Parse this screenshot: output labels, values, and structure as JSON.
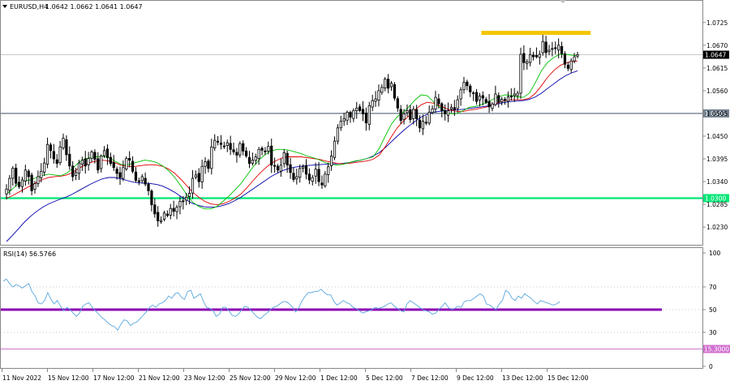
{
  "header": {
    "symbol": "EURUSD,H4",
    "ohlc": "1.0642 1.0662 1.0641 1.0647",
    "menu_icon": "triangle-down-icon"
  },
  "rsi_header": {
    "label": "RSI(14) 56.5766"
  },
  "colors": {
    "bull_candle_border": "#000000",
    "bull_candle_fill": "#ffffff",
    "bear_candle_fill": "#000000",
    "ma_fast": "#00c000",
    "ma_mid": "#e00000",
    "ma_slow": "#0000aa",
    "support_line": "#00e676",
    "resistance_line": "#708090",
    "resistance_zone": "#f2c500",
    "rsi_line": "#5aa7dc",
    "rsi_level_50": "#8b00b4",
    "rsi_low_level": "#d070d0",
    "price_tag_current": "#000000",
    "price_tag_resistance": "#708090",
    "price_tag_support": "#00e676",
    "price_tag_rsi": "#d070d0"
  },
  "chart_data": [
    {
      "type": "candlestick",
      "symbol": "EURUSD",
      "timeframe": "H4",
      "ylim": [
        1.0195,
        1.0752
      ],
      "y_ticks": [
        "1.0725",
        "1.0670",
        "1.0615",
        "1.0560",
        "1.0505",
        "1.0450",
        "1.0395",
        "1.0340",
        "1.0285",
        "1.0230"
      ],
      "x_ticks": [
        "11 Nov 2022",
        "15 Nov 12:00",
        "17 Nov 12:00",
        "21 Nov 12:00",
        "23 Nov 12:00",
        "25 Nov 12:00",
        "29 Nov 12:00",
        "1 Dec 12:00",
        "5 Dec 12:00",
        "7 Dec 12:00",
        "9 Dec 12:00",
        "13 Dec 12:00",
        "15 Dec 12:00"
      ],
      "close_series": [
        1.0322,
        1.0348,
        1.0372,
        1.0336,
        1.0328,
        1.0344,
        1.0368,
        1.0352,
        1.0318,
        1.0335,
        1.0352,
        1.0365,
        1.0385,
        1.043,
        1.0415,
        1.0395,
        1.0384,
        1.0424,
        1.0445,
        1.0405,
        1.0378,
        1.0352,
        1.0362,
        1.0385,
        1.0392,
        1.0378,
        1.0396,
        1.0412,
        1.0394,
        1.0368,
        1.0402,
        1.0415,
        1.0398,
        1.0384,
        1.0374,
        1.036,
        1.035,
        1.0374,
        1.0396,
        1.0392,
        1.0365,
        1.0343,
        1.034,
        1.0352,
        1.0334,
        1.0318,
        1.0284,
        1.0262,
        1.0245,
        1.0246,
        1.0264,
        1.0258,
        1.0275,
        1.0268,
        1.0278,
        1.0292,
        1.0292,
        1.0302,
        1.0312,
        1.0348,
        1.0356,
        1.034,
        1.0377,
        1.0388,
        1.0372,
        1.0424,
        1.044,
        1.0437,
        1.043,
        1.0426,
        1.0434,
        1.0418,
        1.0412,
        1.0404,
        1.0432,
        1.0414,
        1.0402,
        1.0384,
        1.0392,
        1.04,
        1.0418,
        1.0416,
        1.0412,
        1.0425,
        1.038,
        1.0378,
        1.0368,
        1.038,
        1.041,
        1.038,
        1.0362,
        1.0345,
        1.0352,
        1.0372,
        1.0376,
        1.0358,
        1.0344,
        1.035,
        1.037,
        1.034,
        1.0332,
        1.0358,
        1.0376,
        1.0402,
        1.0438,
        1.047,
        1.0486,
        1.0492,
        1.0508,
        1.0496,
        1.0512,
        1.0518,
        1.0512,
        1.0504,
        1.0482,
        1.0524,
        1.0536,
        1.054,
        1.056,
        1.0568,
        1.0588,
        1.0566,
        1.0578,
        1.0542,
        1.0518,
        1.0488,
        1.0504,
        1.0512,
        1.049,
        1.0515,
        1.0492,
        1.047,
        1.0486,
        1.0482,
        1.0508,
        1.0516,
        1.0544,
        1.0528,
        1.0512,
        1.0504,
        1.0512,
        1.052,
        1.0514,
        1.0538,
        1.0562,
        1.058,
        1.0572,
        1.0557,
        1.0555,
        1.0534,
        1.0547,
        1.0542,
        1.0532,
        1.0521,
        1.0528,
        1.0552,
        1.0532,
        1.0539,
        1.0538,
        1.0545,
        1.0545,
        1.0552,
        1.0554,
        1.0648,
        1.0628,
        1.063,
        1.0647,
        1.0642,
        1.0642,
        1.0648,
        1.0679,
        1.0652,
        1.0658,
        1.0662,
        1.0662,
        1.067,
        1.065,
        1.0624,
        1.0614,
        1.0632,
        1.0642,
        1.0647
      ],
      "ma_fast_series": [
        1.031,
        1.0322,
        1.0336,
        1.0342,
        1.0344,
        1.035,
        1.0355,
        1.0358,
        1.0356,
        1.0354,
        1.036,
        1.0372,
        1.0386,
        1.0395,
        1.0398,
        1.04,
        1.0402,
        1.0398,
        1.039,
        1.0382,
        1.038,
        1.0384,
        1.0388,
        1.0392,
        1.039,
        1.0386,
        1.0378,
        1.0366,
        1.035,
        1.033,
        1.0308,
        1.029,
        1.028,
        1.0274,
        1.0274,
        1.028,
        1.0292,
        1.0305,
        1.032,
        1.0335,
        1.0355,
        1.0375,
        1.0392,
        1.0405,
        1.0414,
        1.0418,
        1.0418,
        1.0416,
        1.0412,
        1.0408,
        1.0402,
        1.0398,
        1.0393,
        1.0386,
        1.0382,
        1.038,
        1.0382,
        1.0386,
        1.039,
        1.0392,
        1.0396,
        1.04,
        1.042,
        1.045,
        1.0478,
        1.0497,
        1.0508,
        1.0522,
        1.0538,
        1.055,
        1.0548,
        1.0534,
        1.052,
        1.051,
        1.0504,
        1.0505,
        1.0512,
        1.052,
        1.0522,
        1.0526,
        1.0532,
        1.054,
        1.0546,
        1.055,
        1.0548,
        1.0545,
        1.0544,
        1.0554,
        1.058,
        1.0608,
        1.0628,
        1.064,
        1.0648,
        1.0648,
        1.0646,
        1.0645
      ],
      "ma_mid_series": [
        1.03,
        1.0306,
        1.0314,
        1.0322,
        1.033,
        1.0338,
        1.0345,
        1.035,
        1.0352,
        1.0353,
        1.0356,
        1.0362,
        1.0372,
        1.038,
        1.0386,
        1.039,
        1.0392,
        1.039,
        1.0386,
        1.038,
        1.0377,
        1.0376,
        1.0378,
        1.038,
        1.0381,
        1.038,
        1.0377,
        1.037,
        1.036,
        1.0346,
        1.033,
        1.0314,
        1.0302,
        1.0292,
        1.0286,
        1.0284,
        1.0286,
        1.0292,
        1.03,
        1.031,
        1.0325,
        1.0342,
        1.0358,
        1.0372,
        1.0384,
        1.0392,
        1.0398,
        1.04,
        1.04,
        1.04,
        1.0398,
        1.0396,
        1.0394,
        1.039,
        1.0387,
        1.0384,
        1.0383,
        1.0384,
        1.0386,
        1.0388,
        1.039,
        1.0394,
        1.0404,
        1.0424,
        1.0448,
        1.047,
        1.0486,
        1.05,
        1.0514,
        1.0526,
        1.0532,
        1.053,
        1.0524,
        1.0518,
        1.0512,
        1.051,
        1.051,
        1.0513,
        1.0515,
        1.0518,
        1.0521,
        1.0526,
        1.0532,
        1.0536,
        1.0538,
        1.0538,
        1.0538,
        1.0542,
        1.0554,
        1.0572,
        1.0592,
        1.0608,
        1.062,
        1.0627,
        1.063,
        1.0632
      ],
      "ma_slow_series": [
        1.0195,
        1.021,
        1.0226,
        1.0242,
        1.0256,
        1.0268,
        1.0278,
        1.0286,
        1.0292,
        1.0298,
        1.0303,
        1.031,
        1.0318,
        1.0326,
        1.0334,
        1.0341,
        1.0347,
        1.035,
        1.035,
        1.0347,
        1.0343,
        1.0339,
        1.0337,
        1.0336,
        1.0335,
        1.0333,
        1.0329,
        1.0322,
        1.0314,
        1.0304,
        1.0295,
        1.0287,
        1.0282,
        1.0279,
        1.0278,
        1.0279,
        1.0282,
        1.0287,
        1.0294,
        1.0302,
        1.0312,
        1.0322,
        1.0332,
        1.0342,
        1.0352,
        1.036,
        1.0367,
        1.0372,
        1.0375,
        1.0377,
        1.0379,
        1.038,
        1.0381,
        1.0382,
        1.0383,
        1.0383,
        1.0384,
        1.0386,
        1.0389,
        1.0392,
        1.0396,
        1.0402,
        1.041,
        1.0422,
        1.0436,
        1.045,
        1.0463,
        1.0475,
        1.0486,
        1.0496,
        1.0503,
        1.0508,
        1.051,
        1.0512,
        1.0513,
        1.0514,
        1.0515,
        1.0517,
        1.0519,
        1.0521,
        1.0523,
        1.0526,
        1.0529,
        1.0532,
        1.0534,
        1.0535,
        1.0536,
        1.0539,
        1.0545,
        1.0554,
        1.0565,
        1.0576,
        1.0587,
        1.0596,
        1.0603,
        1.0608
      ],
      "levels": [
        {
          "name": "resistance",
          "value": 1.0505,
          "label": "1.0505"
        },
        {
          "name": "support",
          "value": 1.03,
          "label": "1.0300"
        },
        {
          "name": "current",
          "value": 1.0647,
          "label": "1.0647"
        }
      ],
      "resistance_zone": {
        "value": 1.07,
        "from_fraction": 0.7,
        "to_fraction": 0.86
      }
    },
    {
      "type": "line",
      "name": "RSI(14)",
      "ylim": [
        0,
        100
      ],
      "y_ticks": [
        "100",
        "70",
        "50",
        "30",
        "0"
      ],
      "dotted_levels": [
        70,
        50,
        30
      ],
      "levels": [
        {
          "name": "rsi-50",
          "value": 50
        },
        {
          "name": "rsi-low",
          "value": 15.3,
          "label": "15.3000"
        }
      ],
      "values": [
        75,
        77,
        73,
        70,
        72,
        71,
        69,
        71,
        73,
        66,
        62,
        56,
        55,
        58,
        65,
        59,
        55,
        58,
        53,
        49,
        52,
        50,
        47,
        44,
        47,
        53,
        55,
        56,
        52,
        49,
        46,
        43,
        41,
        38,
        36,
        35,
        32,
        37,
        41,
        40,
        36,
        38,
        39,
        42,
        45,
        48,
        52,
        54,
        52,
        55,
        56,
        58,
        62,
        60,
        64,
        65,
        61,
        59,
        66,
        67,
        60,
        62,
        64,
        57,
        52,
        51,
        49,
        44,
        46,
        52,
        52,
        49,
        45,
        44,
        46,
        50,
        53,
        52,
        49,
        46,
        43,
        42,
        45,
        47,
        50,
        52,
        53,
        55,
        57,
        57,
        55,
        52,
        48,
        52,
        58,
        62,
        65,
        65,
        66,
        66,
        68,
        65,
        63,
        63,
        57,
        54,
        56,
        58,
        56,
        55,
        52,
        51,
        49,
        47,
        48,
        49,
        50,
        52,
        51,
        52,
        53,
        55,
        56,
        53,
        51,
        49,
        48,
        55,
        58,
        56,
        54,
        52,
        50,
        49,
        48,
        46,
        47,
        50,
        53,
        56,
        52,
        50,
        51,
        53,
        52,
        57,
        58,
        58,
        60,
        62,
        64,
        62,
        55,
        54,
        52,
        50,
        55,
        58,
        67,
        65,
        60,
        58,
        62,
        60,
        64,
        62,
        60,
        57,
        55,
        58,
        57,
        56,
        55,
        54,
        55,
        57
      ]
    }
  ]
}
